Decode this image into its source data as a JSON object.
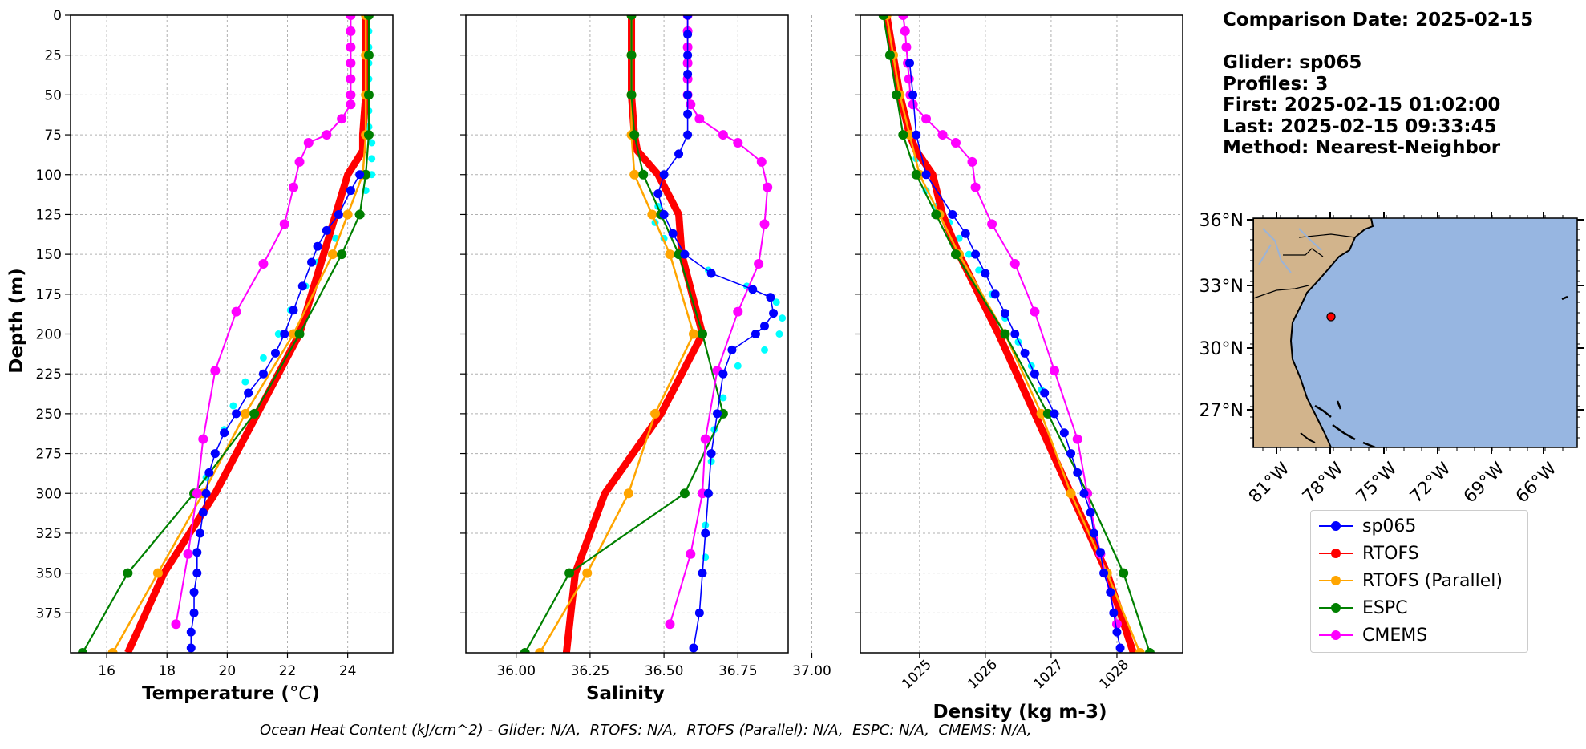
{
  "chart_data": [
    {
      "type": "line",
      "xlabel": "Temperature (°C)",
      "ylabel": "Depth (m)",
      "xlim": [
        14.8,
        25.5
      ],
      "ylim": [
        400,
        0
      ],
      "xticks": [
        16,
        18,
        20,
        22,
        24
      ],
      "yticks": [
        0,
        25,
        50,
        75,
        100,
        125,
        150,
        175,
        200,
        225,
        250,
        275,
        300,
        325,
        350,
        375
      ],
      "grid": true,
      "series": [
        {
          "name": "sp065",
          "depth": [
            100,
            110,
            125,
            135,
            145,
            155,
            170,
            185,
            200,
            212,
            225,
            237,
            250,
            262,
            275,
            287,
            300,
            312,
            325,
            337,
            350,
            362,
            375,
            387,
            397
          ],
          "values": [
            24.4,
            24.1,
            23.7,
            23.3,
            23.0,
            22.8,
            22.5,
            22.2,
            21.9,
            21.6,
            21.2,
            20.7,
            20.3,
            19.9,
            19.6,
            19.4,
            19.3,
            19.2,
            19.1,
            19.0,
            19.0,
            18.9,
            18.9,
            18.8,
            18.8
          ]
        },
        {
          "name": "sp065 (profile 2)",
          "depth": [
            0,
            10,
            20,
            30,
            40,
            50,
            60,
            70,
            80,
            90,
            100,
            110,
            125,
            140,
            155,
            170,
            185,
            200,
            215,
            230,
            245,
            260,
            275,
            290
          ],
          "values": [
            24.7,
            24.7,
            24.7,
            24.7,
            24.7,
            24.7,
            24.7,
            24.7,
            24.8,
            24.8,
            24.8,
            24.6,
            24.0,
            23.6,
            23.0,
            22.6,
            22.1,
            21.7,
            21.2,
            20.6,
            20.2,
            19.9,
            19.6,
            19.3
          ]
        },
        {
          "name": "RTOFS",
          "depth": [
            0,
            25,
            50,
            75,
            85,
            100,
            125,
            150,
            200,
            250,
            300,
            350,
            400
          ],
          "values": [
            24.6,
            24.6,
            24.6,
            24.5,
            24.5,
            24.0,
            23.6,
            23.2,
            22.4,
            21.0,
            19.6,
            17.9,
            16.7
          ]
        },
        {
          "name": "RTOFS (Parallel)",
          "depth": [
            0,
            25,
            50,
            75,
            100,
            125,
            150,
            200,
            250,
            300,
            350,
            400
          ],
          "values": [
            24.6,
            24.6,
            24.6,
            24.6,
            24.5,
            24.0,
            23.5,
            22.2,
            20.6,
            19.2,
            17.7,
            16.2
          ]
        },
        {
          "name": "ESPC",
          "depth": [
            0,
            25,
            50,
            75,
            100,
            125,
            150,
            200,
            250,
            300,
            350,
            400
          ],
          "values": [
            24.7,
            24.7,
            24.7,
            24.7,
            24.6,
            24.4,
            23.8,
            22.4,
            20.9,
            18.9,
            16.7,
            15.2
          ]
        },
        {
          "name": "CMEMS",
          "depth": [
            0,
            10,
            20,
            30,
            40,
            50,
            56,
            65,
            75,
            80,
            92,
            108,
            131,
            156,
            186,
            223,
            266,
            300,
            338,
            382
          ],
          "values": [
            24.1,
            24.1,
            24.1,
            24.1,
            24.1,
            24.1,
            24.1,
            23.8,
            23.3,
            22.7,
            22.4,
            22.2,
            21.9,
            21.2,
            20.3,
            19.6,
            19.2,
            19.0,
            18.7,
            18.3
          ]
        }
      ]
    },
    {
      "type": "line",
      "xlabel": "Salinity",
      "ylabel": "",
      "xlim": [
        35.83,
        36.92
      ],
      "ylim": [
        400,
        0
      ],
      "xticks": [
        36.0,
        36.25,
        36.5,
        36.75,
        37.0
      ],
      "xticklabels": [
        "36.00",
        "36.25",
        "36.50",
        "36.75",
        "37.00"
      ],
      "grid": true,
      "series": [
        {
          "name": "sp065",
          "depth": [
            0,
            12,
            25,
            37,
            50,
            62,
            75,
            87,
            100,
            112,
            125,
            137,
            150,
            162,
            172,
            177,
            187,
            195,
            200,
            210,
            225,
            250,
            275,
            300,
            325,
            350,
            375,
            397
          ],
          "values": [
            36.58,
            36.58,
            36.58,
            36.58,
            36.58,
            36.58,
            36.58,
            36.55,
            36.5,
            36.48,
            36.5,
            36.53,
            36.57,
            36.66,
            36.8,
            36.86,
            36.87,
            36.84,
            36.81,
            36.73,
            36.7,
            36.68,
            36.66,
            36.65,
            36.64,
            36.63,
            36.62,
            36.6
          ]
        },
        {
          "name": "sp065 (profile 2)",
          "depth": [
            120,
            130,
            140,
            150,
            160,
            170,
            180,
            190,
            200,
            210,
            220,
            240,
            260,
            280,
            300,
            320,
            340
          ],
          "values": [
            36.48,
            36.47,
            36.5,
            36.55,
            36.65,
            36.78,
            36.88,
            36.9,
            36.89,
            36.84,
            36.75,
            36.7,
            36.67,
            36.66,
            36.65,
            36.64,
            36.64
          ]
        },
        {
          "name": "RTOFS",
          "depth": [
            0,
            25,
            50,
            75,
            85,
            100,
            125,
            150,
            200,
            250,
            300,
            350,
            400
          ],
          "values": [
            36.39,
            36.39,
            36.39,
            36.4,
            36.41,
            36.48,
            36.55,
            36.56,
            36.63,
            36.49,
            36.3,
            36.2,
            36.17
          ]
        },
        {
          "name": "RTOFS (Parallel)",
          "depth": [
            0,
            25,
            50,
            75,
            100,
            125,
            150,
            200,
            250,
            300,
            350,
            400
          ],
          "values": [
            36.39,
            36.39,
            36.39,
            36.39,
            36.4,
            36.46,
            36.52,
            36.6,
            36.47,
            36.38,
            36.24,
            36.08
          ]
        },
        {
          "name": "ESPC",
          "depth": [
            0,
            25,
            50,
            75,
            100,
            125,
            150,
            200,
            250,
            300,
            350,
            400
          ],
          "values": [
            36.39,
            36.39,
            36.39,
            36.4,
            36.43,
            36.49,
            36.55,
            36.63,
            36.7,
            36.57,
            36.18,
            36.03
          ]
        },
        {
          "name": "CMEMS",
          "depth": [
            0,
            10,
            20,
            30,
            40,
            50,
            56,
            65,
            75,
            80,
            92,
            108,
            131,
            156,
            186,
            223,
            266,
            300,
            338,
            382
          ],
          "values": [
            36.58,
            36.58,
            36.58,
            36.58,
            36.58,
            36.58,
            36.59,
            36.62,
            36.7,
            36.75,
            36.83,
            36.85,
            36.84,
            36.82,
            36.75,
            36.68,
            36.64,
            36.63,
            36.59,
            36.52
          ]
        }
      ]
    },
    {
      "type": "line",
      "xlabel": "Density (kg m-3)",
      "ylabel": "",
      "xlim": [
        1024.1,
        1029.0
      ],
      "ylim": [
        400,
        0
      ],
      "xticks": [
        1025,
        1026,
        1027,
        1028
      ],
      "grid": true,
      "series": [
        {
          "name": "sp065",
          "depth": [
            30,
            50,
            75,
            100,
            125,
            137,
            150,
            162,
            175,
            187,
            200,
            212,
            225,
            237,
            250,
            262,
            275,
            287,
            300,
            312,
            325,
            337,
            350,
            362,
            375,
            387,
            397
          ],
          "values": [
            1024.85,
            1024.9,
            1024.95,
            1025.1,
            1025.5,
            1025.7,
            1025.85,
            1026.0,
            1026.15,
            1026.3,
            1026.45,
            1026.6,
            1026.75,
            1026.9,
            1027.05,
            1027.2,
            1027.3,
            1027.4,
            1027.5,
            1027.6,
            1027.65,
            1027.75,
            1027.8,
            1027.9,
            1027.95,
            1028.0,
            1028.05
          ]
        },
        {
          "name": "sp065 (profile 2)",
          "depth": [
            90,
            100,
            110,
            120,
            130,
            140,
            150,
            160,
            175,
            190,
            205,
            220,
            235,
            250
          ],
          "values": [
            1024.95,
            1025.0,
            1025.1,
            1025.25,
            1025.45,
            1025.6,
            1025.75,
            1025.9,
            1026.1,
            1026.3,
            1026.5,
            1026.7,
            1026.85,
            1027.0
          ]
        },
        {
          "name": "RTOFS",
          "depth": [
            0,
            25,
            50,
            75,
            85,
            100,
            125,
            150,
            200,
            250,
            300,
            350,
            400
          ],
          "values": [
            1024.5,
            1024.6,
            1024.7,
            1024.85,
            1024.95,
            1025.2,
            1025.35,
            1025.6,
            1026.2,
            1026.75,
            1027.3,
            1027.85,
            1028.25
          ]
        },
        {
          "name": "RTOFS (Parallel)",
          "depth": [
            0,
            25,
            50,
            75,
            100,
            125,
            150,
            200,
            250,
            300,
            350,
            400
          ],
          "values": [
            1024.5,
            1024.6,
            1024.7,
            1024.85,
            1025.0,
            1025.3,
            1025.6,
            1026.3,
            1026.85,
            1027.3,
            1027.85,
            1028.35
          ]
        },
        {
          "name": "ESPC",
          "depth": [
            0,
            25,
            50,
            75,
            100,
            125,
            150,
            200,
            250,
            300,
            350,
            400
          ],
          "values": [
            1024.45,
            1024.55,
            1024.65,
            1024.75,
            1024.95,
            1025.25,
            1025.55,
            1026.3,
            1026.95,
            1027.55,
            1028.1,
            1028.5
          ]
        },
        {
          "name": "CMEMS",
          "depth": [
            0,
            10,
            20,
            30,
            40,
            50,
            56,
            65,
            75,
            80,
            92,
            108,
            131,
            156,
            186,
            223,
            266,
            300,
            338,
            382
          ],
          "values": [
            1024.75,
            1024.78,
            1024.8,
            1024.82,
            1024.84,
            1024.86,
            1024.9,
            1025.1,
            1025.35,
            1025.55,
            1025.8,
            1025.85,
            1026.1,
            1026.45,
            1026.75,
            1027.05,
            1027.4,
            1027.55,
            1027.75,
            1028.0
          ]
        }
      ]
    }
  ],
  "colors": {
    "sp065": "#0000ff",
    "sp065_alt": "#00ffff",
    "RTOFS": "#ff0000",
    "RTOFS (Parallel)": "#ffa500",
    "ESPC": "#008000",
    "CMEMS": "#ff00ff",
    "ocean": "#97b6e1",
    "land": "#d2b48c"
  },
  "info": {
    "comparison_date": "Comparison Date: 2025-02-15",
    "glider": "Glider: sp065",
    "profiles": "Profiles: 3",
    "first": "First: 2025-02-15 01:02:00",
    "last": "Last: 2025-02-15 09:33:45",
    "method": "Method: Nearest-Neighbor"
  },
  "map": {
    "lat_labels": [
      "36°N",
      "33°N",
      "30°N",
      "27°N"
    ],
    "lon_labels": [
      "81°W",
      "78°W",
      "75°W",
      "72°W",
      "69°W",
      "66°W"
    ],
    "glider_location": {
      "lon": -77.8,
      "lat": 31.5
    }
  },
  "legend": {
    "items": [
      {
        "label": "sp065",
        "color": "#0000ff"
      },
      {
        "label": "RTOFS",
        "color": "#ff0000"
      },
      {
        "label": "RTOFS (Parallel)",
        "color": "#ffa500"
      },
      {
        "label": "ESPC",
        "color": "#008000"
      },
      {
        "label": "CMEMS",
        "color": "#ff00ff"
      }
    ]
  },
  "footer": "Ocean Heat Content (kJ/cm^2) - Glider: N/A,  RTOFS: N/A,  RTOFS (Parallel): N/A,  ESPC: N/A,  CMEMS: N/A,"
}
